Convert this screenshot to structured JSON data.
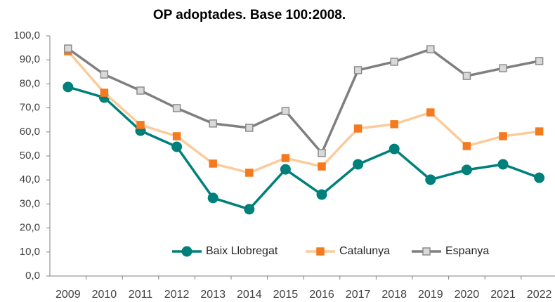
{
  "chart_data": {
    "type": "line",
    "title": "OP adoptades. Base 100:2008.",
    "categories": [
      "2009",
      "2010",
      "2011",
      "2012",
      "2013",
      "2014",
      "2015",
      "2016",
      "2017",
      "2018",
      "2019",
      "2020",
      "2021",
      "2022"
    ],
    "series": [
      {
        "name": "Baix Llobregat",
        "color": "#00807a",
        "marker": "circle",
        "marker_color": "#00807a",
        "marker_edge": "#00807a",
        "values": [
          78.7,
          74.3,
          60.5,
          53.8,
          32.5,
          27.8,
          44.4,
          33.9,
          46.5,
          52.9,
          40.1,
          44.2,
          46.5,
          40.9
        ]
      },
      {
        "name": "Catalunya",
        "color": "#fbcb9a",
        "marker": "square",
        "marker_color": "#f47a1f",
        "marker_edge": "#f47a1f",
        "values": [
          93.6,
          76.3,
          62.9,
          58.2,
          46.8,
          43.0,
          49.1,
          45.6,
          61.4,
          63.2,
          68.1,
          54.1,
          58.2,
          60.2
        ]
      },
      {
        "name": "Espanya",
        "color": "#7f7f7f",
        "marker": "square",
        "marker_color": "#d9d9d9",
        "marker_edge": "#8c8c8c",
        "values": [
          94.7,
          83.9,
          77.2,
          69.9,
          63.5,
          61.7,
          68.7,
          51.2,
          85.7,
          89.2,
          94.4,
          83.3,
          86.5,
          89.5
        ]
      }
    ],
    "ylim": [
      0,
      100
    ],
    "yticks": [
      {
        "value": 0,
        "label": "0,0"
      },
      {
        "value": 10,
        "label": "10,0"
      },
      {
        "value": 20,
        "label": "20,0"
      },
      {
        "value": 30,
        "label": "30,0"
      },
      {
        "value": 40,
        "label": "40,0"
      },
      {
        "value": 50,
        "label": "50,0"
      },
      {
        "value": 60,
        "label": "60,0"
      },
      {
        "value": 70,
        "label": "70,0"
      },
      {
        "value": 80,
        "label": "80,0"
      },
      {
        "value": 90,
        "label": "90,0"
      },
      {
        "value": 100,
        "label": "100,0"
      }
    ],
    "grid": false,
    "legend": "bottom"
  }
}
